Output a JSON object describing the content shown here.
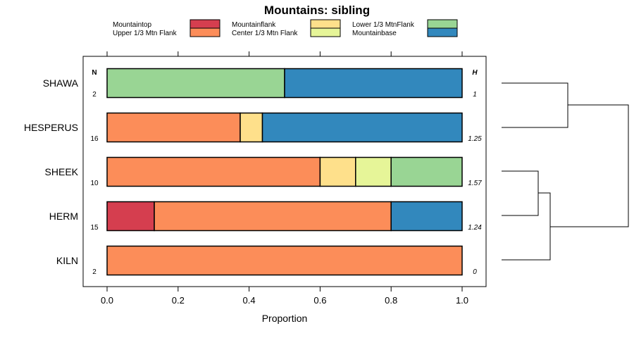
{
  "chart_data": {
    "type": "bar",
    "stacked": true,
    "orientation": "horizontal",
    "title": "Mountains: sibling",
    "xlabel": "Proportion",
    "ylabel": "",
    "xlim": [
      0,
      1
    ],
    "xticks": [
      "0.0",
      "0.2",
      "0.4",
      "0.6",
      "0.8",
      "1.0"
    ],
    "n_header": "N",
    "h_header": "H",
    "categories": [
      "SHAWA",
      "HESPERUS",
      "SHEEK",
      "HERM",
      "KILN"
    ],
    "n_values": [
      "2",
      "16",
      "10",
      "15",
      "2"
    ],
    "h_values": [
      "1",
      "1.25",
      "1.57",
      "1.24",
      "0"
    ],
    "series": [
      {
        "name": "Mountaintop",
        "color": "#d53e4f",
        "values": [
          0,
          0,
          0,
          0.133,
          0
        ]
      },
      {
        "name": "Upper 1/3 Mtn Flank",
        "color": "#fc8d59",
        "values": [
          0,
          0.375,
          0.6,
          0.667,
          1.0
        ]
      },
      {
        "name": "Mountainflank",
        "color": "#fee08b",
        "values": [
          0,
          0.0625,
          0.1,
          0,
          0
        ]
      },
      {
        "name": "Center 1/3 Mtn Flank",
        "color": "#e6f598",
        "values": [
          0,
          0,
          0.1,
          0,
          0
        ]
      },
      {
        "name": "Lower 1/3 MtnFlank",
        "color": "#99d594",
        "values": [
          0.5,
          0,
          0.2,
          0,
          0
        ]
      },
      {
        "name": "Mountainbase",
        "color": "#3288bd",
        "values": [
          0.5,
          0.5625,
          0,
          0.2,
          0
        ]
      }
    ],
    "legend_position": "top"
  }
}
